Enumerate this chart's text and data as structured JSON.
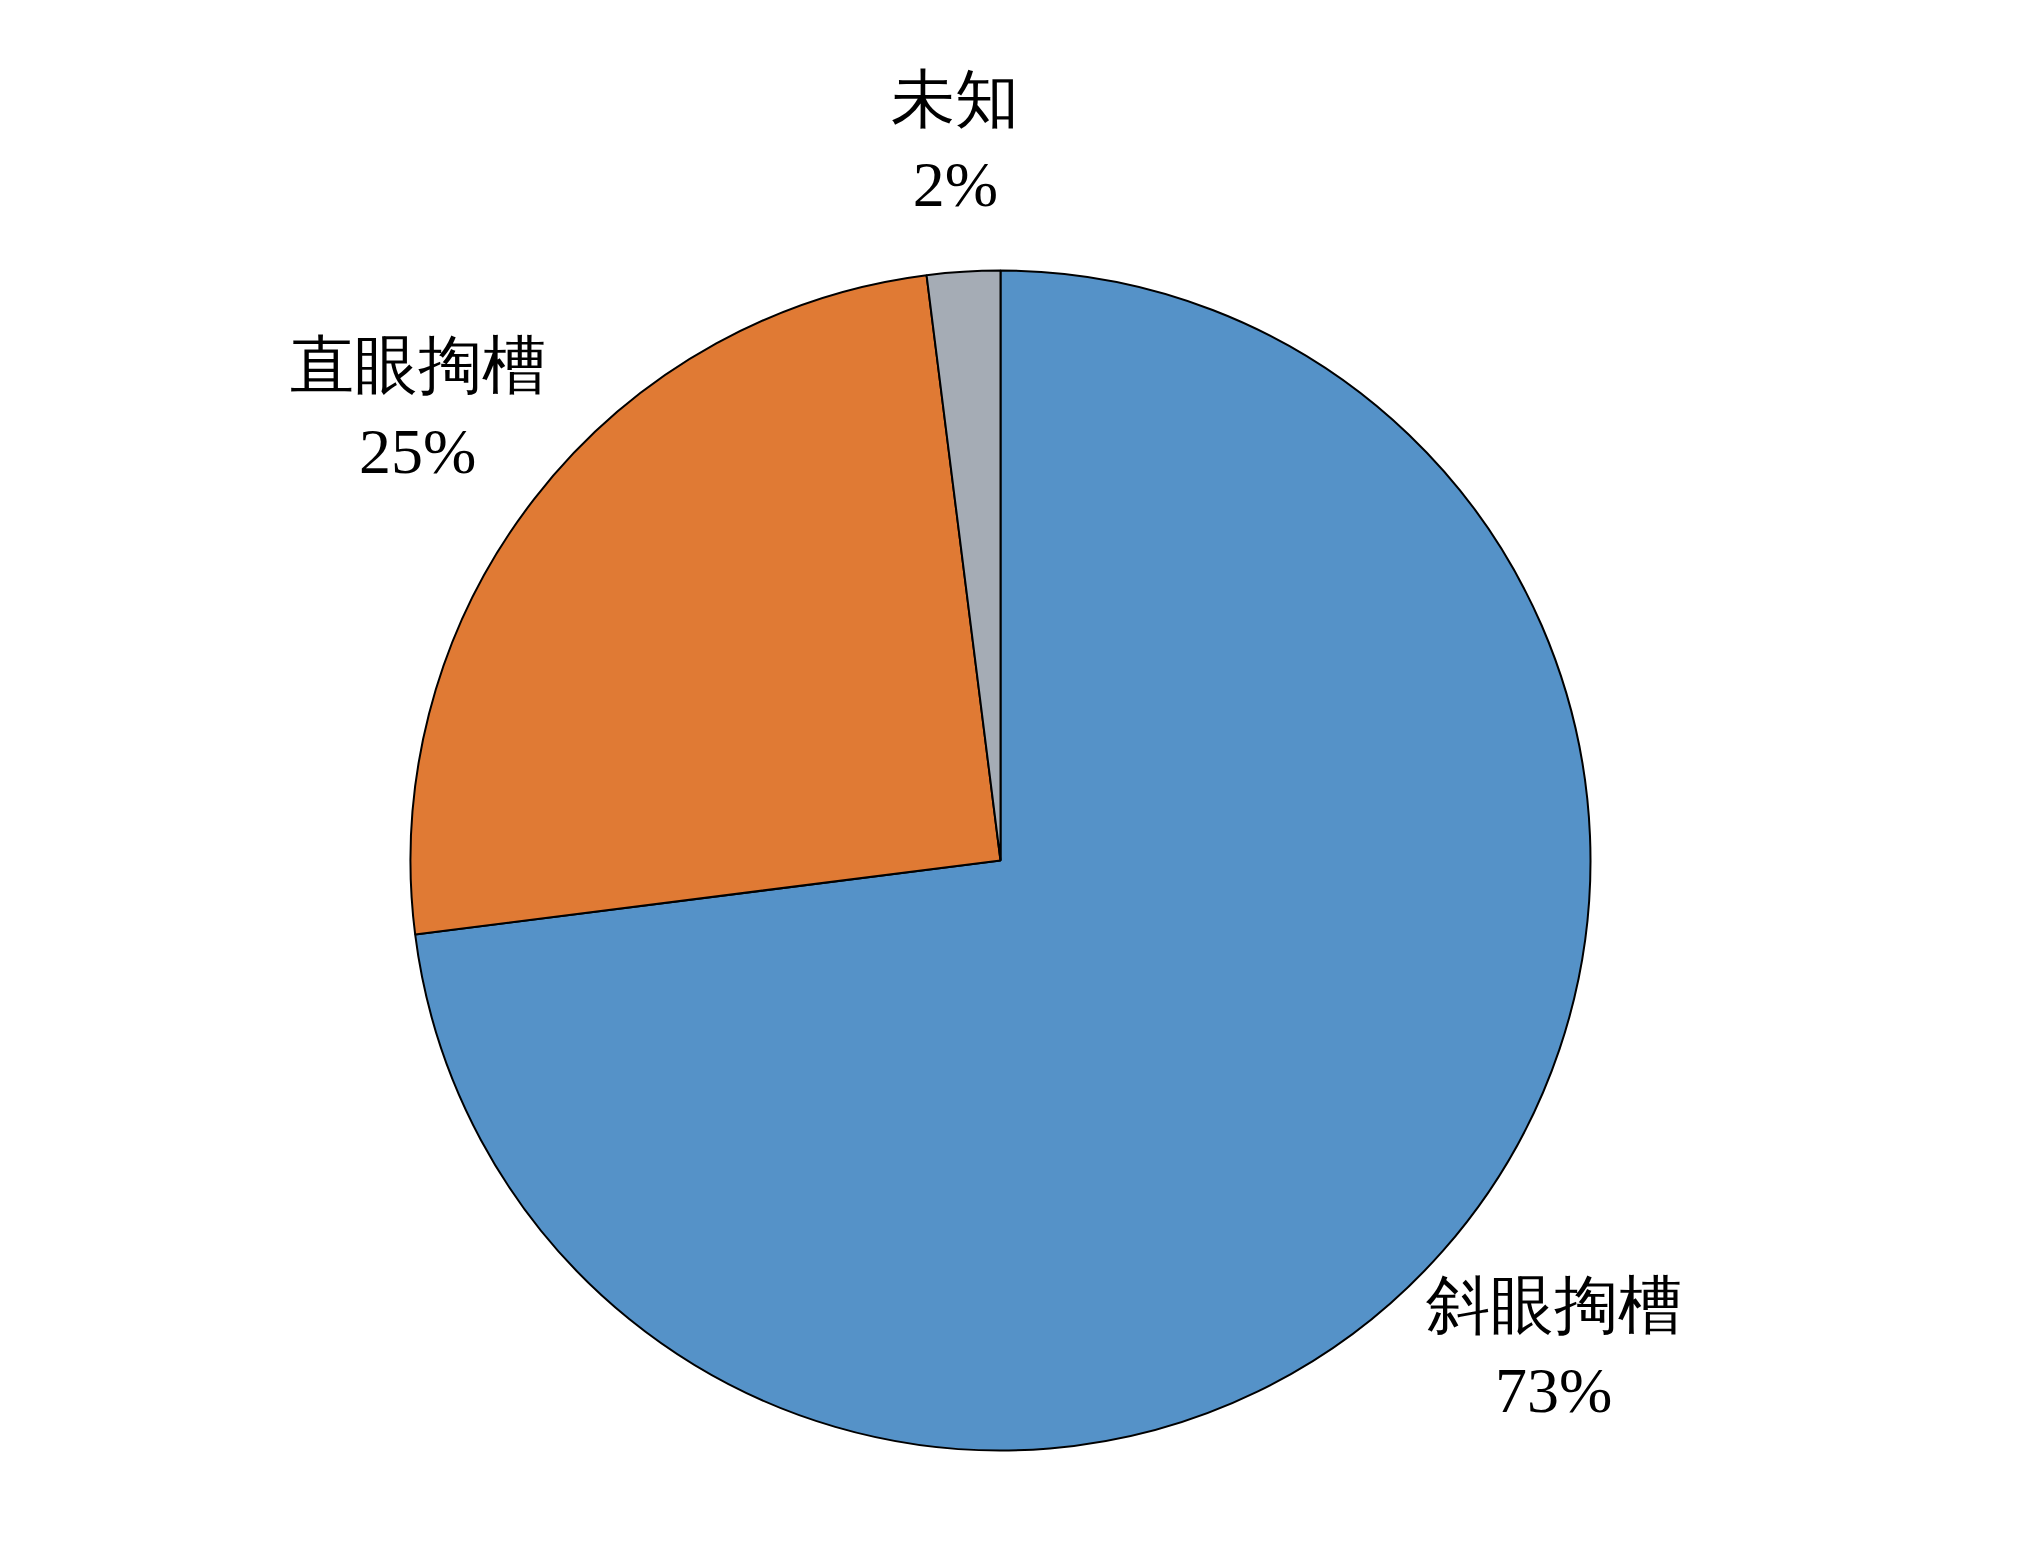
{
  "chart_data": {
    "type": "pie",
    "categories": [
      "斜眼掏槽",
      "直眼掏槽",
      "未知"
    ],
    "values": [
      73,
      25,
      2
    ],
    "colors": [
      "#5592c8",
      "#e07a34",
      "#a5acb5"
    ],
    "value_labels": [
      "73%",
      "25%",
      "2%"
    ]
  }
}
